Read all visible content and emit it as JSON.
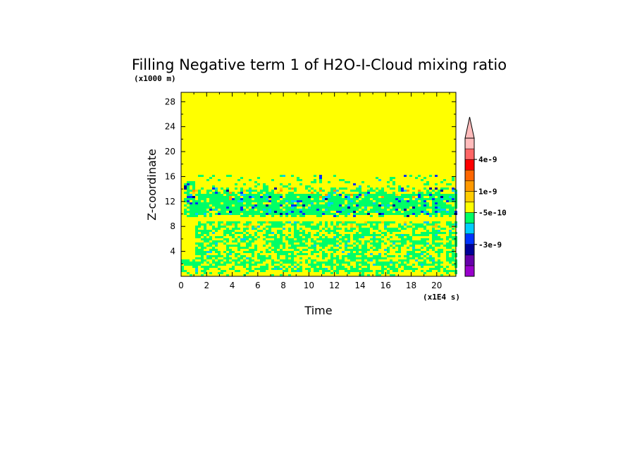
{
  "chart_data": {
    "type": "heatmap",
    "title": "Filling Negative term 1 of H2O-I-Cloud mixing ratio",
    "xlabel": "Time",
    "ylabel": "Z-coordinate",
    "x_unit_label": "(x1E4 s)",
    "y_unit_label": "(x1000 m)",
    "xlim": [
      0,
      21.5
    ],
    "ylim": [
      0,
      29.5
    ],
    "x_ticks": [
      "0",
      "2",
      "4",
      "6",
      "8",
      "10",
      "12",
      "14",
      "16",
      "18",
      "20"
    ],
    "y_ticks": [
      "4",
      "8",
      "12",
      "16",
      "20",
      "24",
      "28"
    ],
    "colorbar": {
      "colors": [
        "#9900cc",
        "#6600aa",
        "#000099",
        "#0033ff",
        "#00ccff",
        "#00ff66",
        "#ffff00",
        "#ffcc00",
        "#ff9900",
        "#ff6600",
        "#ff0000",
        "#ff6666",
        "#ffbbbb"
      ],
      "labels": [
        {
          "text": "-3e-9",
          "level": 3
        },
        {
          "text": "-5e-10",
          "level": 6
        },
        {
          "text": "1e-9",
          "level": 8
        },
        {
          "text": "4e-9",
          "level": 11
        }
      ],
      "extend_top": true
    },
    "background_color": "#ffff00",
    "regions": [
      {
        "name": "upper band",
        "z_range": [
          9.5,
          16.5
        ],
        "dominant": "#00ff66"
      },
      {
        "name": "lower band",
        "z_range": [
          0,
          9
        ],
        "dominant": "#00ff66"
      }
    ]
  }
}
